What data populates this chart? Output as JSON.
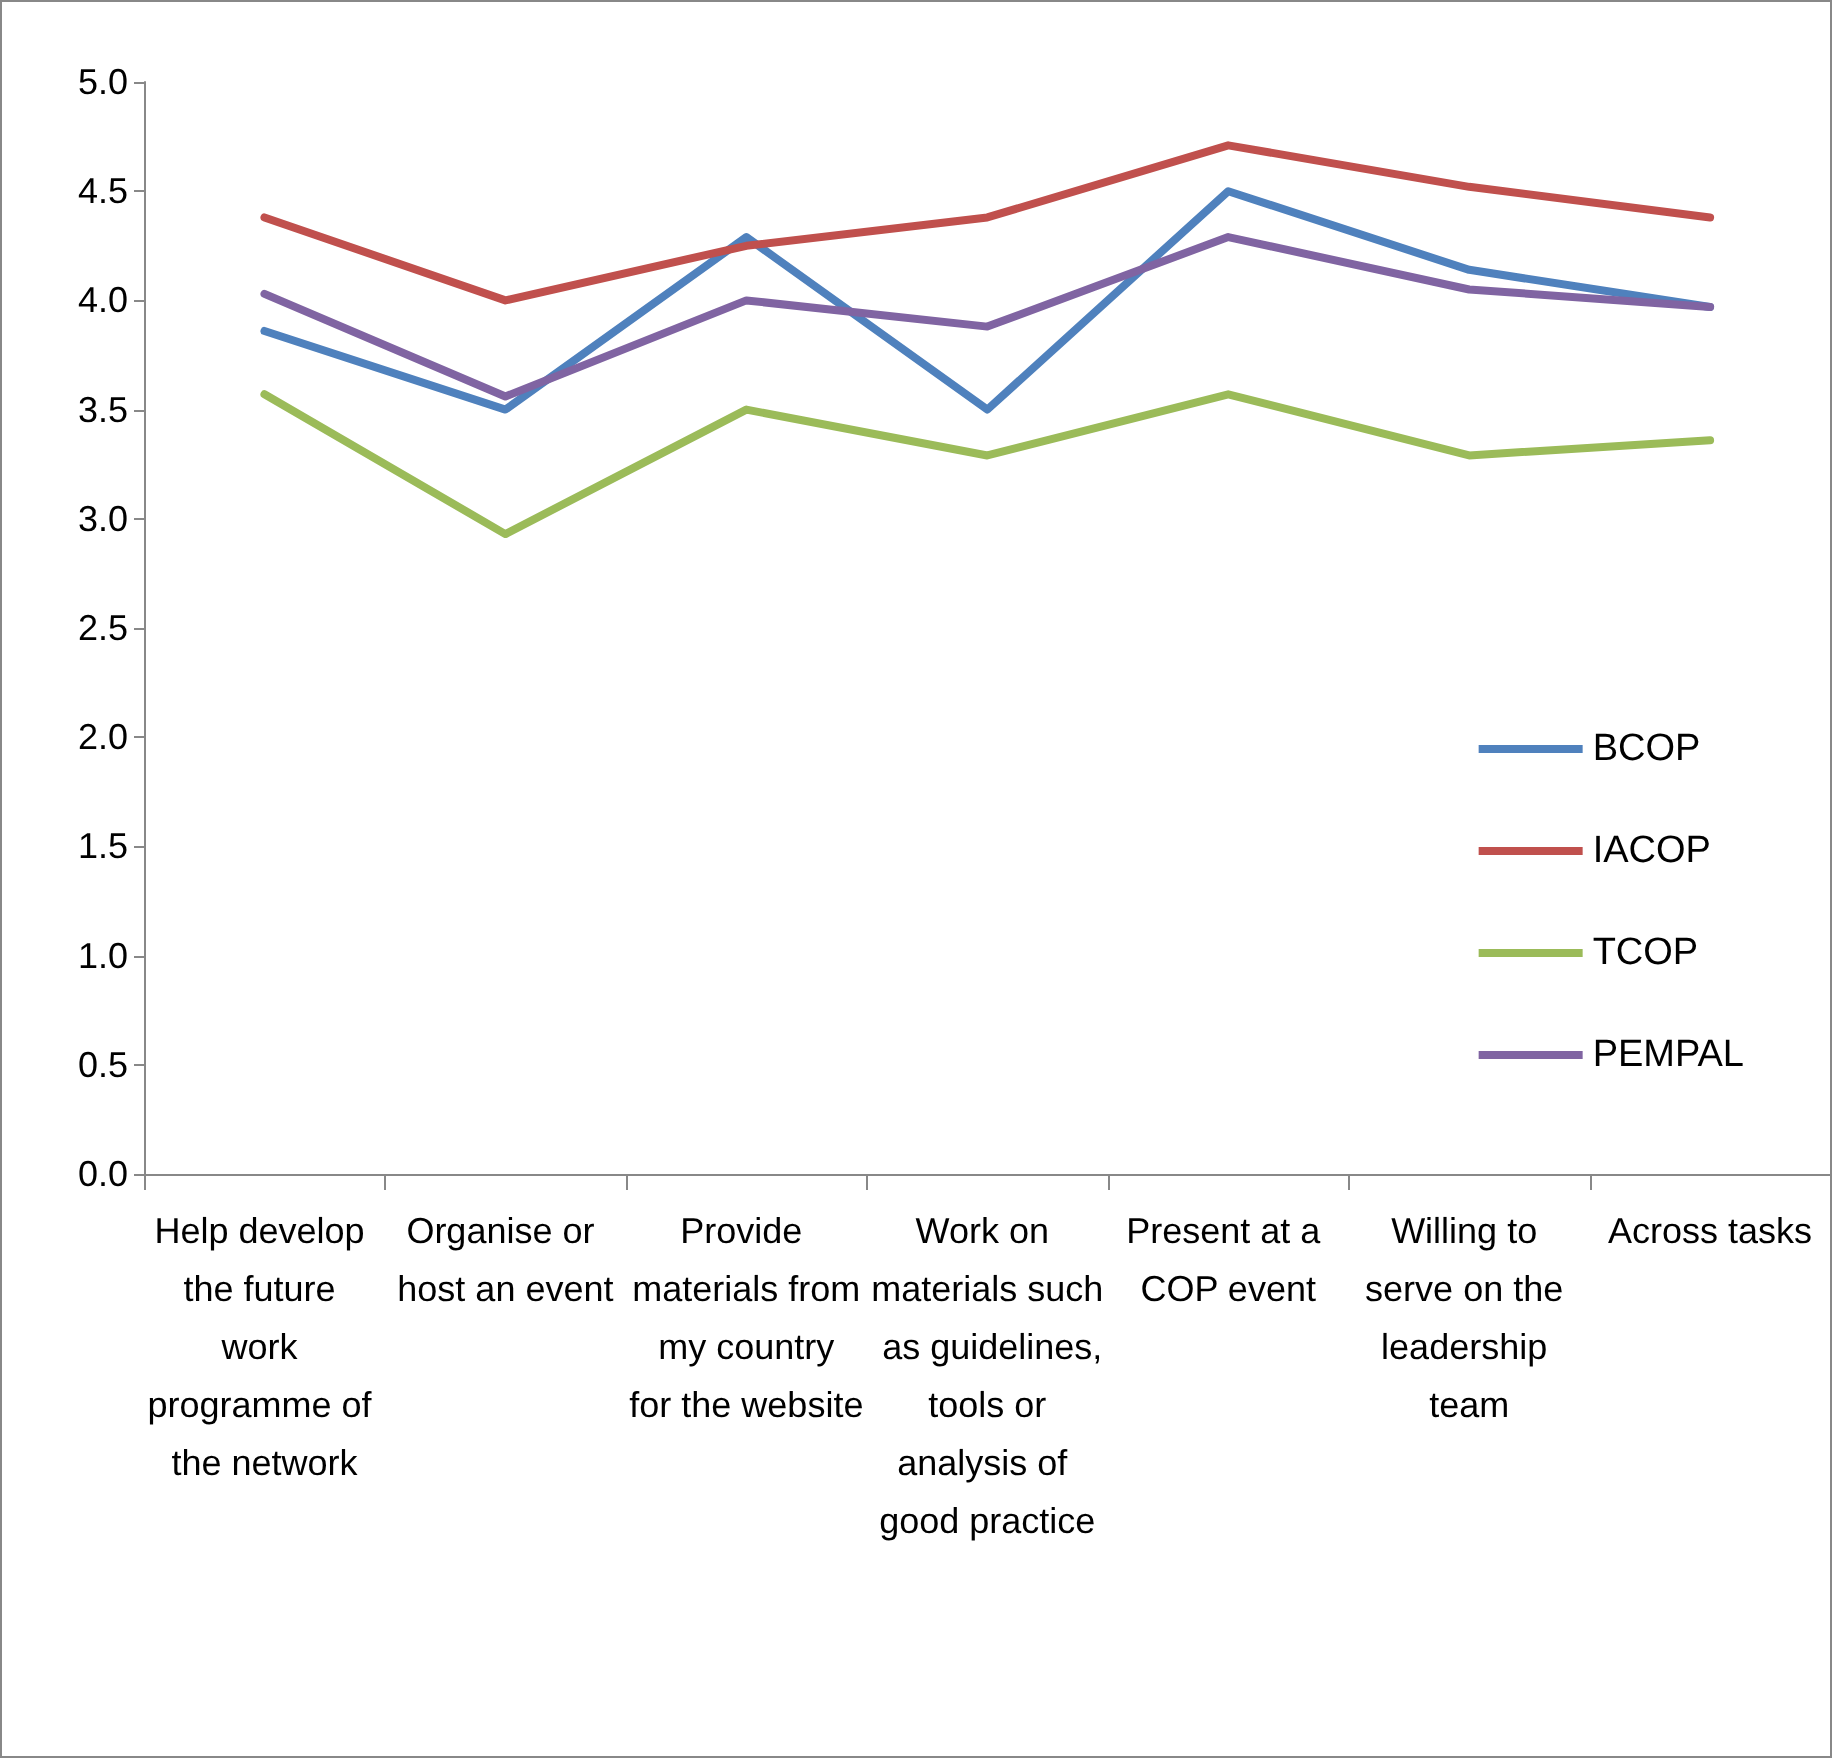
{
  "chart_data": {
    "type": "line",
    "categories": [
      "Help develop the future work programme of the network",
      "Organise or host an event",
      "Provide materials from my country for the website",
      "Work on materials such as guidelines, tools or analysis of good practice",
      "Present at a COP event",
      "Willing to serve on the leadership team",
      "Across tasks"
    ],
    "series": [
      {
        "name": "BCOP",
        "color": "#4f81bd",
        "values": [
          3.86,
          3.5,
          4.29,
          3.5,
          4.5,
          4.14,
          3.97
        ]
      },
      {
        "name": "IACOP",
        "color": "#c0504d",
        "values": [
          4.38,
          4.0,
          4.25,
          4.38,
          4.71,
          4.52,
          4.38
        ]
      },
      {
        "name": "TCOP",
        "color": "#9bbb59",
        "values": [
          3.57,
          2.93,
          3.5,
          3.29,
          3.57,
          3.29,
          3.36
        ]
      },
      {
        "name": "PEMPAL",
        "color": "#8064a2",
        "values": [
          4.03,
          3.56,
          4.0,
          3.88,
          4.29,
          4.05,
          3.97
        ]
      }
    ],
    "ylim": [
      0,
      5
    ],
    "yticks": [
      {
        "value": 0,
        "label": "0.0"
      },
      {
        "value": 0.5,
        "label": "0.5"
      },
      {
        "value": 1,
        "label": "1.0"
      },
      {
        "value": 1.5,
        "label": "1.5"
      },
      {
        "value": 2,
        "label": "2.0"
      },
      {
        "value": 2.5,
        "label": "2.5"
      },
      {
        "value": 3,
        "label": "3.0"
      },
      {
        "value": 3.5,
        "label": "3.5"
      },
      {
        "value": 4,
        "label": "4.0"
      },
      {
        "value": 4.5,
        "label": "4.5"
      },
      {
        "value": 5,
        "label": "5.0"
      }
    ],
    "grid": false,
    "legend": "right",
    "marker": "none",
    "line_style": "solid"
  }
}
